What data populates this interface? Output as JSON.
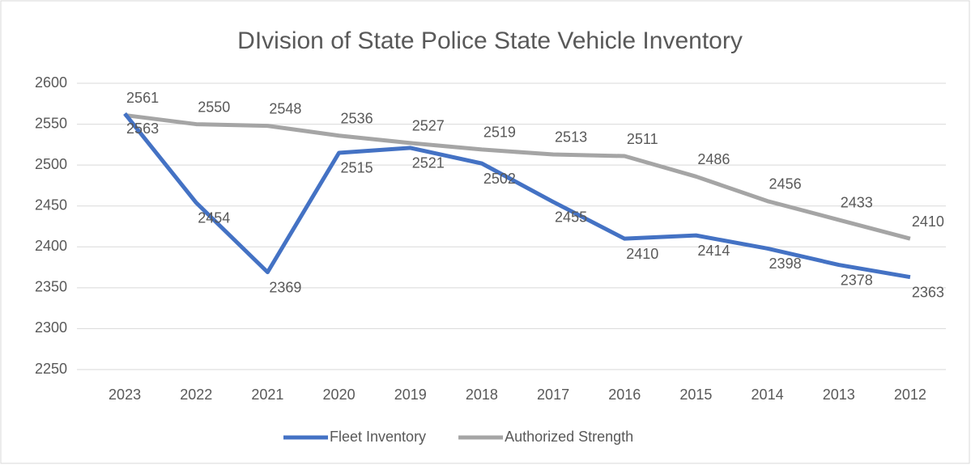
{
  "chart_data": {
    "type": "line",
    "title": "DIvision of State Police State Vehicle Inventory",
    "categories": [
      "2023",
      "2022",
      "2021",
      "2020",
      "2019",
      "2018",
      "2017",
      "2016",
      "2015",
      "2014",
      "2013",
      "2012"
    ],
    "series": [
      {
        "name": "Fleet Inventory",
        "color": "#4472c4",
        "values": [
          2563,
          2454,
          2369,
          2515,
          2521,
          2502,
          2455,
          2410,
          2414,
          2398,
          2378,
          2363
        ]
      },
      {
        "name": "Authorized Strength",
        "color": "#a5a5a5",
        "values": [
          2561,
          2550,
          2548,
          2536,
          2527,
          2519,
          2513,
          2511,
          2486,
          2456,
          2433,
          2410
        ]
      }
    ],
    "ylim": [
      2250,
      2600
    ],
    "yticks": [
      2250,
      2300,
      2350,
      2400,
      2450,
      2500,
      2550,
      2600
    ],
    "grid": true,
    "legend": "bottom"
  }
}
